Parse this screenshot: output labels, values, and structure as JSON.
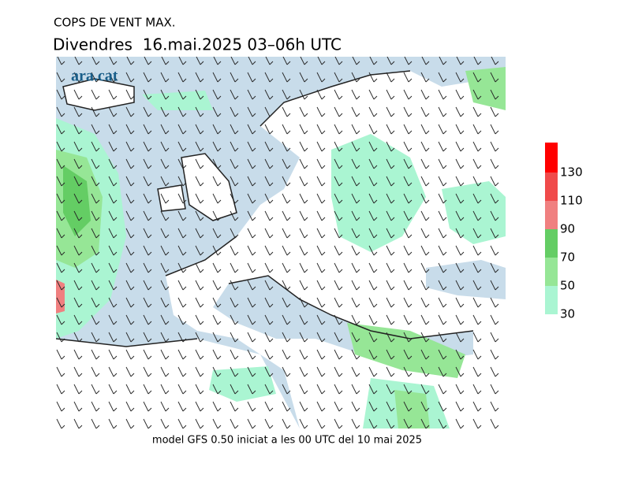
{
  "header": {
    "title": "COPS DE VENT MAX.",
    "subtitle": "Divendres  16.mai.2025 03–06h UTC"
  },
  "logo": "ara.cat",
  "footer": "model GFS 0.50 iniciat a les 00 UTC del 10 mai 2025",
  "legend": {
    "labels": [
      30,
      50,
      70,
      90,
      110,
      130
    ],
    "colors": [
      "#aaf5d2",
      "#96e696",
      "#64cd64",
      "#f08080",
      "#f04a4a",
      "#ff0000"
    ]
  }
}
